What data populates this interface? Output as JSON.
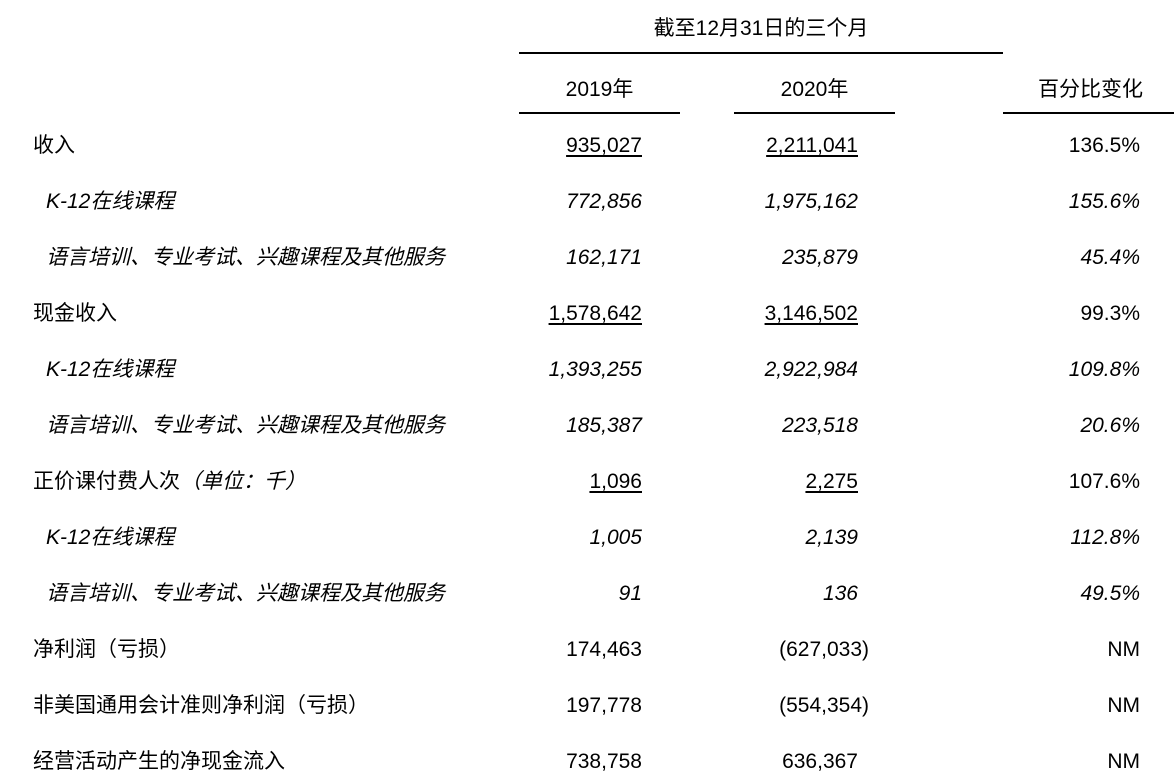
{
  "header": {
    "period": "截至12月31日的三个月",
    "col_2019": "2019年",
    "col_2020": "2020年",
    "col_change": "百分比变化"
  },
  "rows": [
    {
      "label": "收入",
      "v2019": "935,027",
      "v2020": "2,211,041",
      "change": "136.5%",
      "type": "main",
      "underline": true
    },
    {
      "label": "K-12在线课程",
      "v2019": "772,856",
      "v2020": "1,975,162",
      "change": "155.6%",
      "type": "sub"
    },
    {
      "label": "语言培训、专业考试、兴趣课程及其他服务",
      "v2019": "162,171",
      "v2020": "235,879",
      "change": "45.4%",
      "type": "sub"
    },
    {
      "label": "现金收入",
      "v2019": "1,578,642",
      "v2020": "3,146,502",
      "change": "99.3%",
      "type": "main",
      "underline": true
    },
    {
      "label": "K-12在线课程",
      "v2019": "1,393,255",
      "v2020": "2,922,984",
      "change": "109.8%",
      "type": "sub"
    },
    {
      "label": "语言培训、专业考试、兴趣课程及其他服务",
      "v2019": "185,387",
      "v2020": "223,518",
      "change": "20.6%",
      "type": "sub"
    },
    {
      "label": "正价课付费人次",
      "label_note": "（单位：千）",
      "v2019": "1,096",
      "v2020": "2,275",
      "change": "107.6%",
      "type": "main",
      "underline": true
    },
    {
      "label": "K-12在线课程",
      "v2019": "1,005",
      "v2020": "2,139",
      "change": "112.8%",
      "type": "sub"
    },
    {
      "label": "语言培训、专业考试、兴趣课程及其他服务",
      "v2019": "91",
      "v2020": "136",
      "change": "49.5%",
      "type": "sub"
    },
    {
      "label": "净利润（亏损）",
      "v2019": "174,463",
      "v2020": "(627,033)",
      "change": "NM",
      "type": "main"
    },
    {
      "label": "非美国通用会计准则净利润（亏损）",
      "v2019": "197,778",
      "v2020": "(554,354)",
      "change": "NM",
      "type": "main"
    },
    {
      "label": "经营活动产生的净现金流入",
      "v2019": "738,758",
      "v2020": "636,367",
      "change": "NM",
      "type": "main"
    }
  ]
}
